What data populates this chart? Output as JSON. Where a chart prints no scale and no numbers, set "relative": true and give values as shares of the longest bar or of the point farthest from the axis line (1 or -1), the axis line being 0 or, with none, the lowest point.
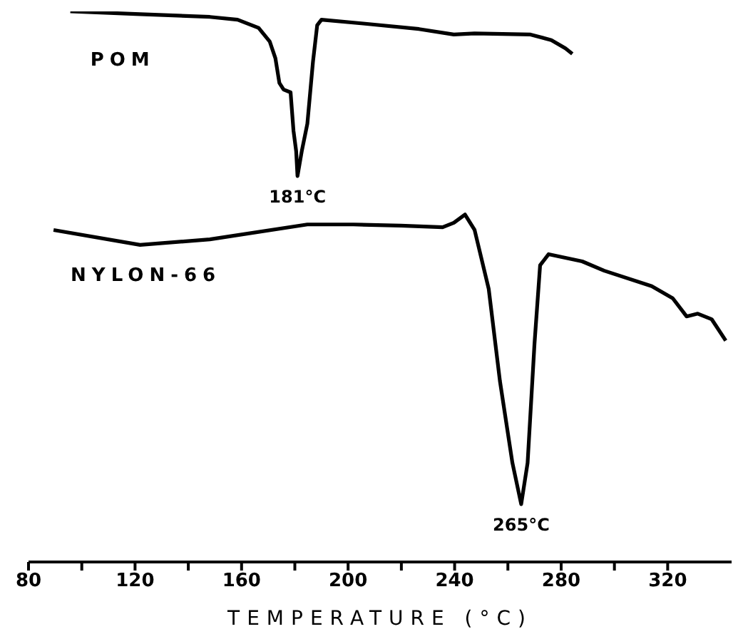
{
  "chart_data": {
    "type": "line",
    "xlabel": "TEMPERATURE (°C)",
    "relative": true,
    "tick_labels": "x",
    "xlim": [
      80,
      344
    ],
    "xticks": [
      80,
      {
        "value": 100,
        "label": null
      },
      120,
      {
        "value": 140,
        "label": null
      },
      160,
      {
        "value": 180,
        "label": null
      },
      200,
      {
        "value": 220,
        "label": null
      },
      240,
      {
        "value": 260,
        "label": null
      },
      280,
      {
        "value": 300,
        "label": null
      },
      320
    ],
    "annotations": [
      {
        "text": "181°C",
        "x": 181,
        "y": 0.701
      },
      {
        "text": "265°C",
        "x": 265,
        "y": 0.105
      }
    ],
    "series": [
      {
        "name": "POM",
        "color": "#000000",
        "x": [
          95.7,
          121.9,
          148.1,
          158.5,
          166.4,
          170.6,
          172.7,
          174.2,
          175.8,
          178.4,
          179.5,
          180.5,
          181,
          182.6,
          184.7,
          186.8,
          188.4,
          190,
          205.7,
          226.6,
          239.7,
          247.5,
          268.5,
          276.3,
          281.6,
          284.2
        ],
        "values": [
          1.0,
          0.995,
          0.99,
          0.985,
          0.97,
          0.945,
          0.915,
          0.87,
          0.858,
          0.853,
          0.783,
          0.746,
          0.701,
          0.746,
          0.796,
          0.908,
          0.975,
          0.985,
          0.978,
          0.968,
          0.958,
          0.96,
          0.958,
          0.948,
          0.933,
          0.923
        ]
      },
      {
        "name": "NYLON-66",
        "color": "#000000",
        "x": [
          89.4,
          121.9,
          148.1,
          184.7,
          202,
          219.8,
          235.5,
          239.7,
          243.9,
          247.5,
          252.8,
          257,
          261.7,
          265,
          267.4,
          270,
          272.1,
          275.3,
          287.9,
          296.2,
          314,
          321.9,
          327.1,
          331.3,
          336.5,
          341.8
        ],
        "values": [
          0.603,
          0.576,
          0.586,
          0.613,
          0.613,
          0.611,
          0.608,
          0.616,
          0.631,
          0.603,
          0.496,
          0.329,
          0.18,
          0.105,
          0.18,
          0.397,
          0.539,
          0.559,
          0.546,
          0.529,
          0.501,
          0.479,
          0.446,
          0.451,
          0.441,
          0.402
        ]
      }
    ]
  }
}
